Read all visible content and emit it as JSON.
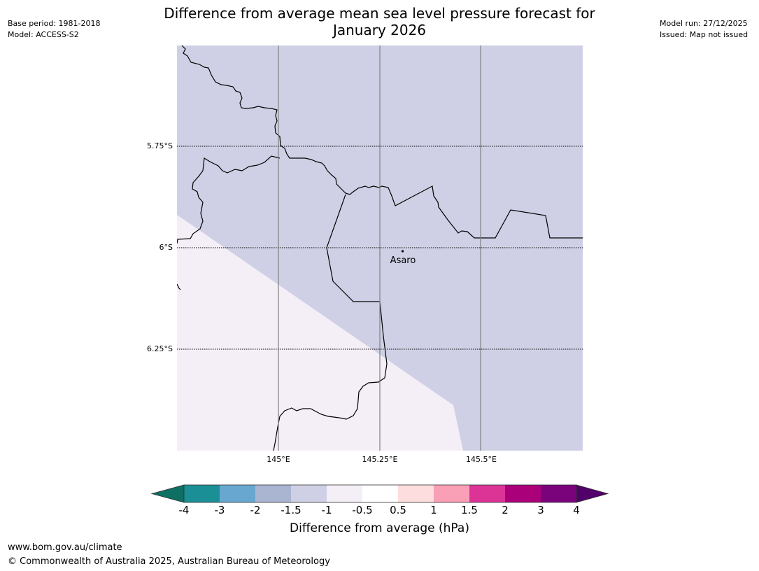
{
  "header": {
    "base_period": "Base period: 1981-2018",
    "model": "Model: ACCESS-S2",
    "title_line1": "Difference from average mean sea level pressure forecast for",
    "title_line2": "January 2026",
    "model_run": "Model run: 27/12/2025",
    "issued": "Issued: Map not issued"
  },
  "map": {
    "lat_labels": [
      "5.75°S",
      "6°S",
      "6.25°S"
    ],
    "lon_labels": [
      "145°E",
      "145.25°E",
      "145.5°E"
    ],
    "places": [
      {
        "name": "Asaro"
      }
    ],
    "colors": {
      "lavender": "#cfd0e5",
      "pale": "#f4eef7"
    }
  },
  "colorbar": {
    "title": "Difference from average (hPa)",
    "labels": [
      "-4",
      "-3",
      "-2",
      "-1.5",
      "-1",
      "-0.5",
      "0.5",
      "1",
      "1.5",
      "2",
      "3",
      "4"
    ],
    "colors": [
      "#0e6f63",
      "#1a9096",
      "#68a8d0",
      "#aab5d2",
      "#cfd0e5",
      "#f4eef7",
      "#ffffff",
      "#fddddd",
      "#f9a0b6",
      "#dc3397",
      "#aa0079",
      "#7a037c",
      "#52006a"
    ]
  },
  "footer": {
    "url": "www.bom.gov.au/climate",
    "copyright": "© Commonwealth of Australia 2025, Australian Bureau of Meteorology"
  }
}
